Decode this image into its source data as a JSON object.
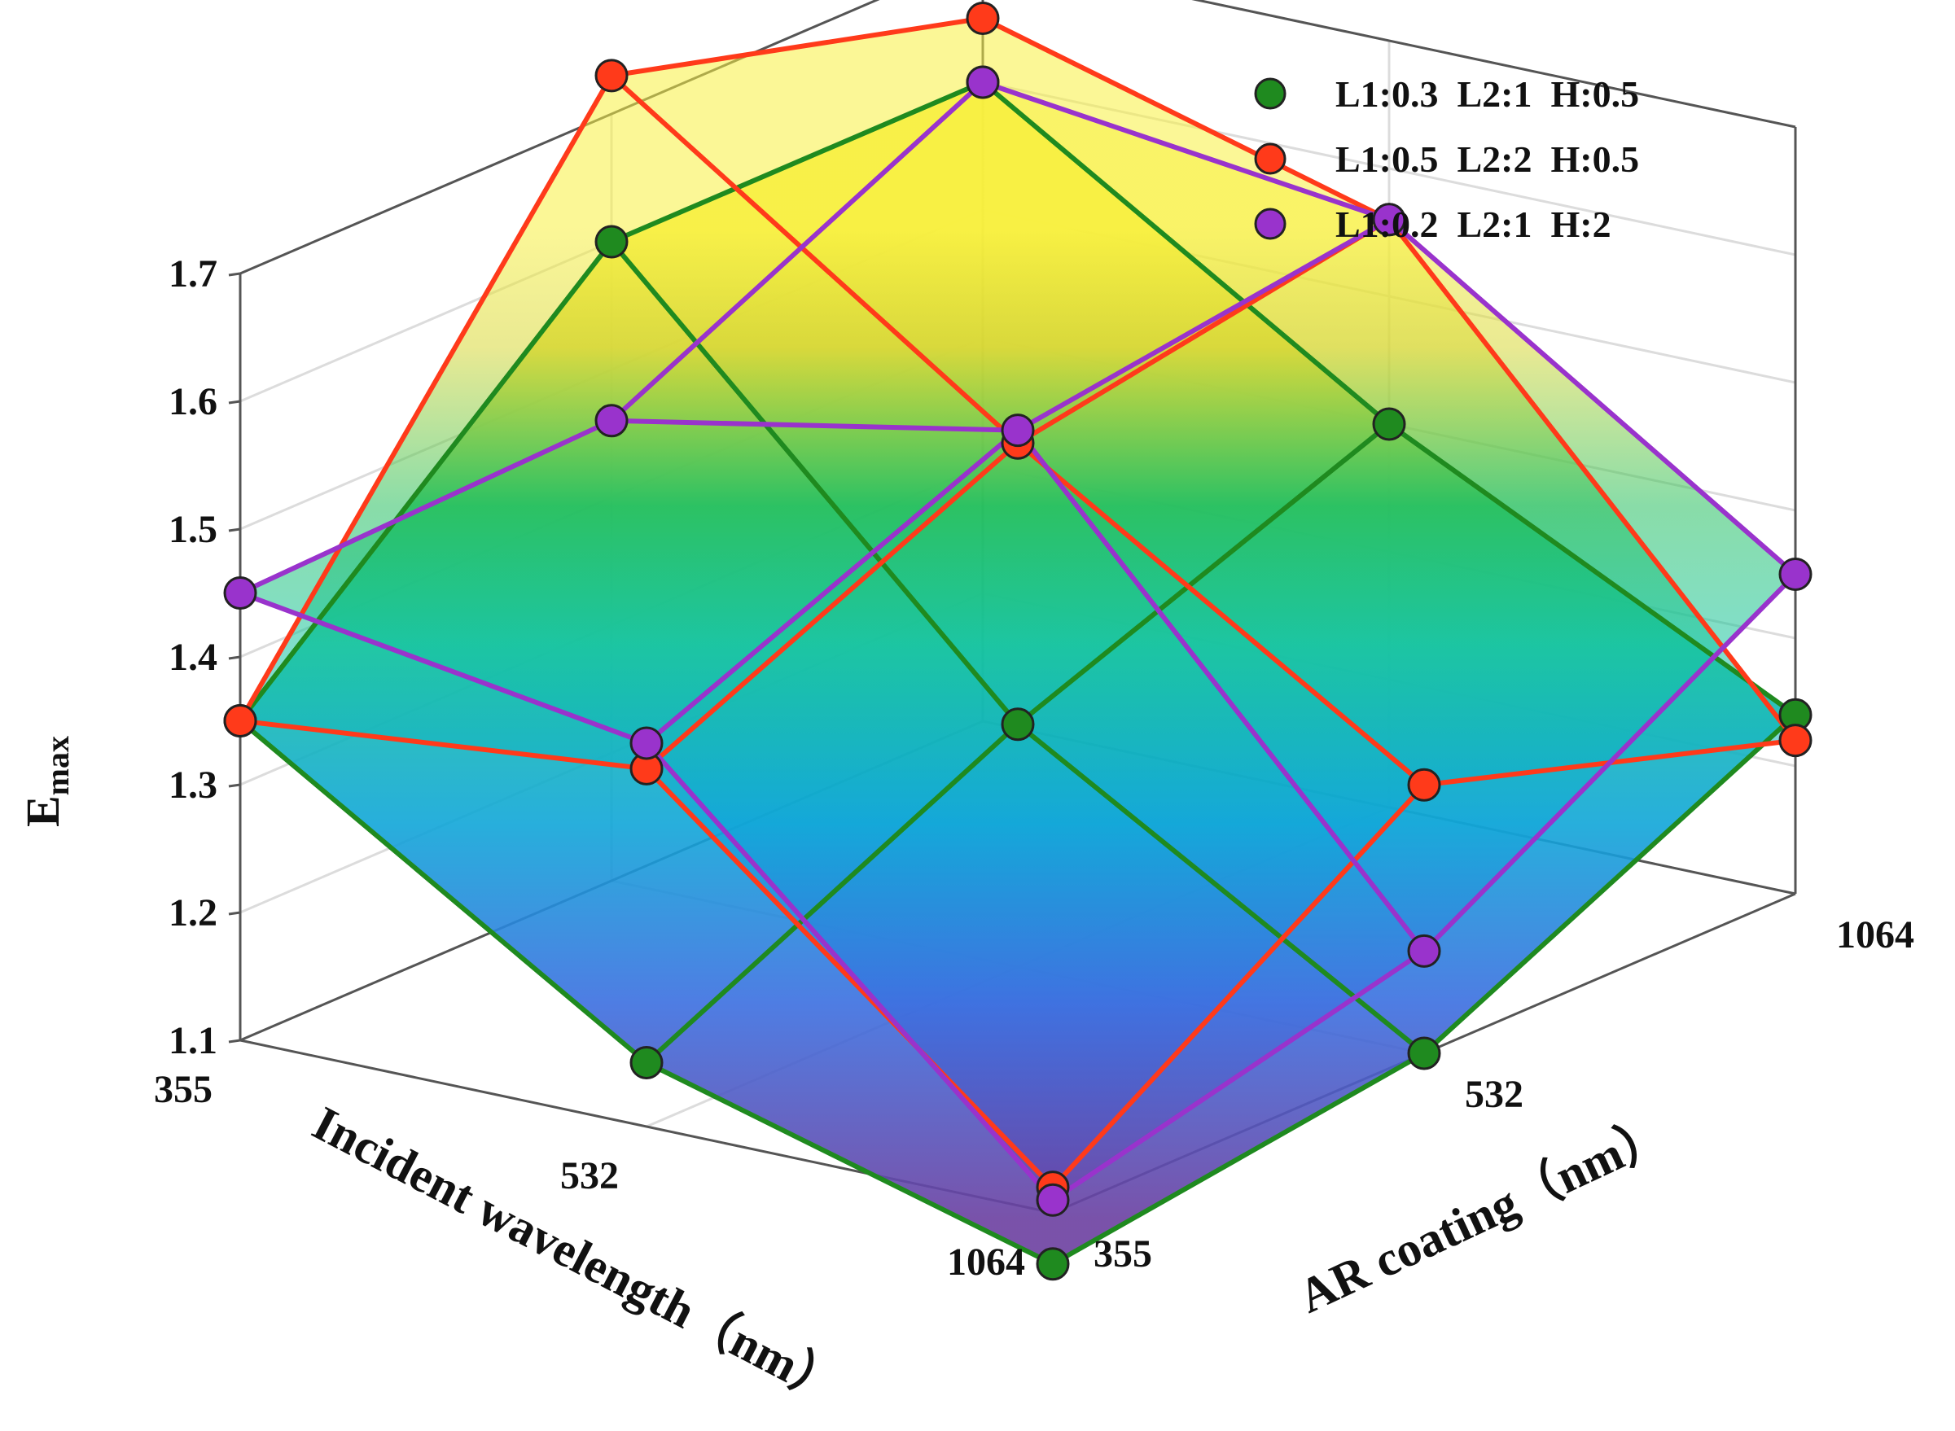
{
  "chart_data": {
    "type": "3d-surface",
    "zlabel_main": "E",
    "zlabel_sub": "max",
    "xlabel": "Incident wavelength（nm）",
    "ylabel": "AR coating（nm）",
    "x_ticks": [
      "355",
      "532",
      "1064"
    ],
    "y_ticks": [
      "355",
      "532",
      "1064"
    ],
    "z_ticks": [
      "1.1",
      "1.2",
      "1.3",
      "1.4",
      "1.5",
      "1.6",
      "1.7"
    ],
    "zlim": [
      1.1,
      1.7
    ],
    "grid": true,
    "legend_position": "top-right",
    "colormap": [
      "#6b3fa0",
      "#3b6fe0",
      "#10a6d8",
      "#18c4a0",
      "#28c060",
      "#d8d838",
      "#f8f040"
    ],
    "series": [
      {
        "name": "L1:0.3  L2:1  H:0.5",
        "color": "#1f8a1f",
        "z": [
          [
            1.35,
            1.6,
            1.6
          ],
          [
            1.15,
            1.29,
            1.4
          ],
          [
            1.06,
            1.1,
            1.24
          ]
        ]
      },
      {
        "name": "L1:0.5  L2:2  H:0.5",
        "color": "#ff3a1a",
        "z": [
          [
            1.35,
            1.73,
            1.65
          ],
          [
            1.38,
            1.51,
            1.56
          ],
          [
            1.12,
            1.31,
            1.22
          ]
        ]
      },
      {
        "name": "L1:0.2  L2:1  H:2",
        "color": "#9933cc",
        "z": [
          [
            1.45,
            1.46,
            1.6
          ],
          [
            1.4,
            1.52,
            1.56
          ],
          [
            1.11,
            1.18,
            1.35
          ]
        ]
      }
    ]
  }
}
